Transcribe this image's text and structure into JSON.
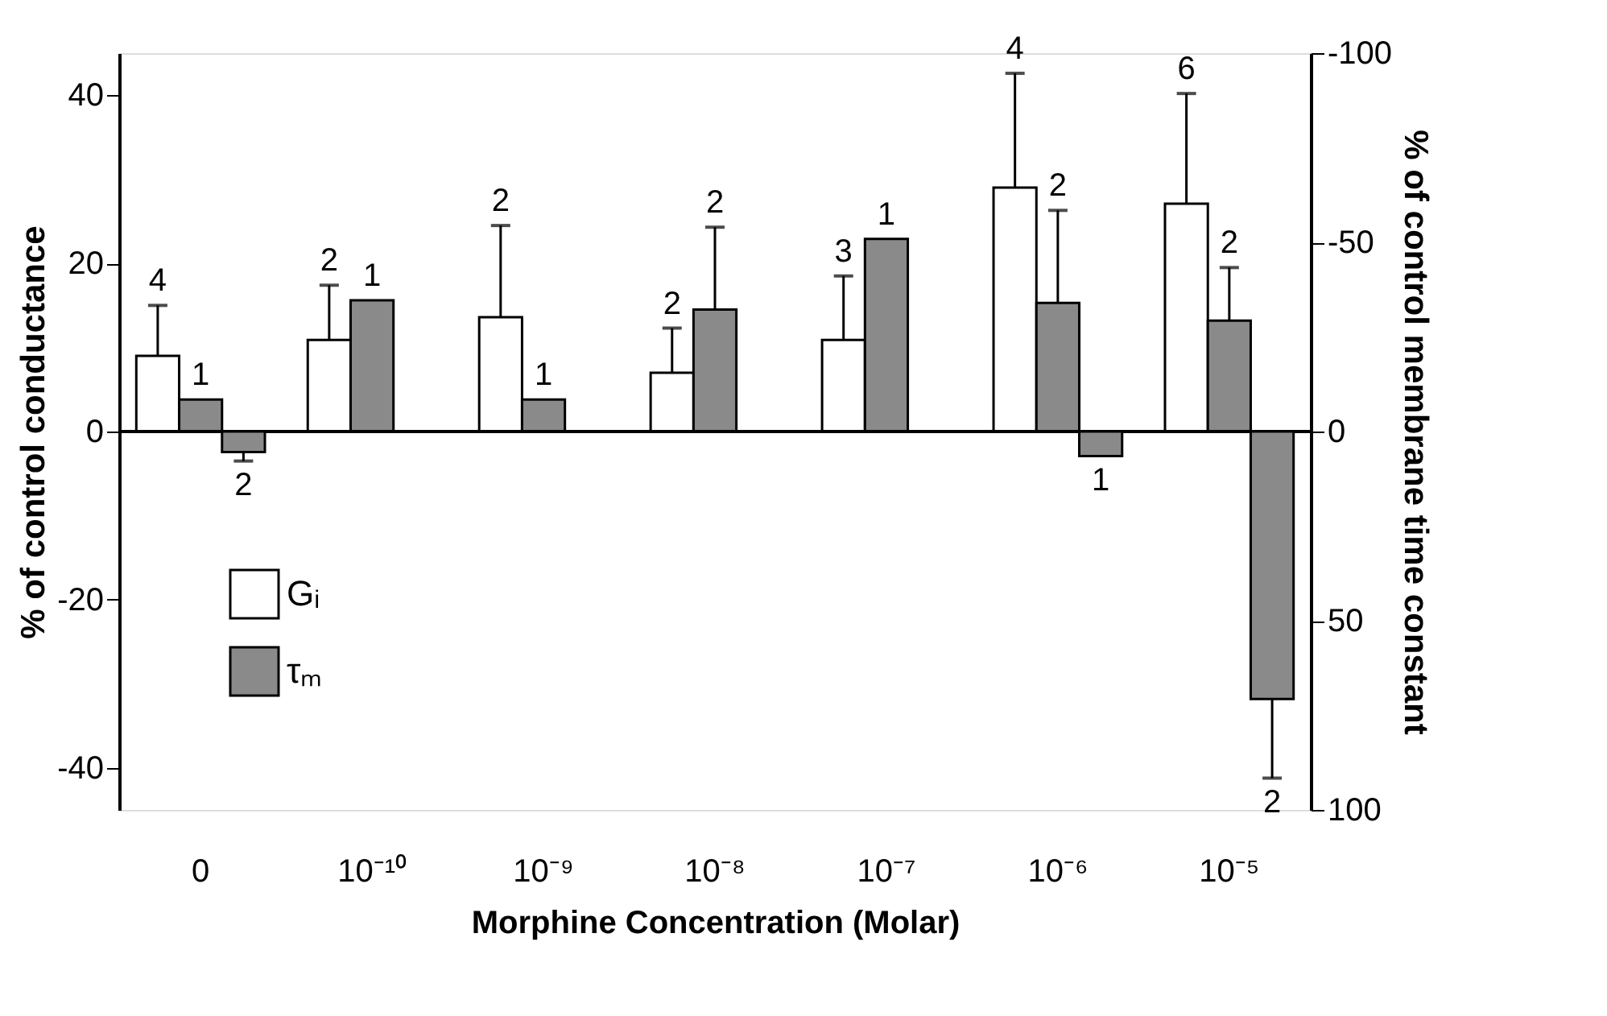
{
  "chart_data": {
    "type": "bar",
    "xlabel": "Morphine Concentration (Molar)",
    "ylabel": "% of control conductance",
    "y2label": "% of control membrane time constant",
    "categories": [
      "0",
      "10⁻¹⁰",
      "10⁻⁹",
      "10⁻⁸",
      "10⁻⁷",
      "10⁻⁶",
      "10⁻⁵"
    ],
    "series": [
      {
        "name": "Gᵢ",
        "color": "#ffffff",
        "values": [
          9.0,
          10.9,
          13.6,
          7.0,
          10.9,
          29.0,
          27.1
        ],
        "errors": [
          [
            9.0,
            15.0
          ],
          [
            10.9,
            17.4
          ],
          [
            13.6,
            24.5
          ],
          [
            7.0,
            12.3
          ],
          [
            10.9,
            18.5
          ],
          [
            29.0,
            42.6
          ],
          [
            27.1,
            40.2
          ]
        ]
      },
      {
        "name": "τₘ",
        "color": "#8a8a8a",
        "values": [
          3.8,
          15.6,
          3.8,
          14.5,
          22.9,
          15.3,
          13.2
        ],
        "errors": [
          null,
          null,
          null,
          [
            14.5,
            24.3
          ],
          null,
          [
            15.3,
            26.3
          ],
          [
            13.2,
            19.5
          ]
        ]
      },
      {
        "color": "#8a8a8a",
        "axis": "y2",
        "values": [
          5.4,
          null,
          null,
          null,
          null,
          6.5,
          70.7
        ],
        "errors": [
          [
            5.4,
            7.8
          ],
          null,
          null,
          null,
          null,
          null,
          [
            70.7,
            91.6
          ]
        ]
      }
    ],
    "annotations": [
      "4",
      "2",
      "2",
      "2",
      "3",
      "4",
      "6",
      "1",
      "1",
      "1",
      "2",
      "1",
      "2",
      "2",
      "2",
      "1",
      "2"
    ],
    "ylim": [
      -45,
      45
    ],
    "yticks": [
      -40,
      -20,
      0,
      20,
      40
    ],
    "y2lim": [
      100,
      -100
    ],
    "y2ticks": [
      -100,
      -50,
      0,
      50,
      100
    ],
    "ref_lines": [
      {
        "axis": "y",
        "value": 0
      }
    ],
    "legend": "bottom left",
    "grid": false
  }
}
